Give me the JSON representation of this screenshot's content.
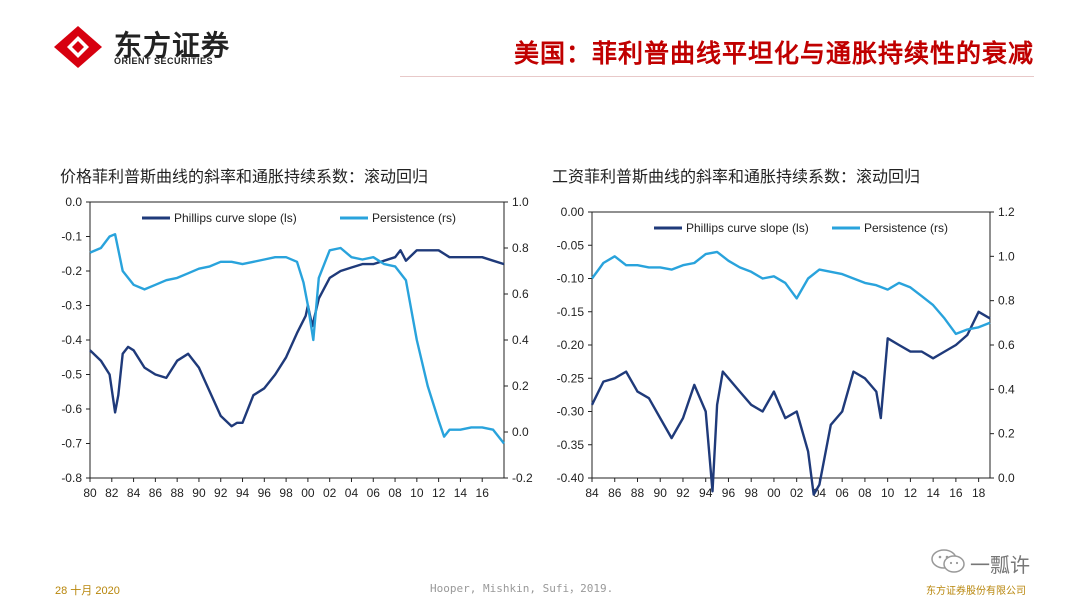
{
  "header": {
    "logo_cn": "东方证券",
    "logo_en": "ORIENT SECURITIES",
    "title": "美国：菲利普曲线平坦化与通胀持续性的衰减"
  },
  "footer": {
    "date": "28 十月 2020",
    "source": "Hooper, Mishkin, Sufi，2019.",
    "company": "东方证券股份有限公司",
    "watermark": "一瓢许"
  },
  "colors": {
    "dark_series": "#1f3a7a",
    "light_series": "#29a3dc",
    "title_red": "#c00000",
    "axis": "#222222"
  },
  "chart_data": [
    {
      "type": "line",
      "title": "价格菲利普斯曲线的斜率和通胀持续系数：滚动回归",
      "x_tick_labels": [
        "80",
        "82",
        "84",
        "86",
        "88",
        "90",
        "92",
        "94",
        "96",
        "98",
        "00",
        "02",
        "04",
        "06",
        "08",
        "10",
        "12",
        "14",
        "16"
      ],
      "x_range": [
        1980,
        2018
      ],
      "y_left": {
        "range": [
          -0.8,
          0.0
        ],
        "ticks": [
          "0.0",
          "-0.1",
          "-0.2",
          "-0.3",
          "-0.4",
          "-0.5",
          "-0.6",
          "-0.7",
          "-0.8"
        ]
      },
      "y_right": {
        "range": [
          -0.2,
          1.0
        ],
        "ticks": [
          "1.0",
          "0.8",
          "0.6",
          "0.4",
          "0.2",
          "0.0",
          "-0.2"
        ]
      },
      "series": [
        {
          "name": "Phillips curve slope (ls)",
          "axis": "left",
          "x": [
            1980,
            1981,
            1981.8,
            1982.3,
            1982.6,
            1983,
            1983.5,
            1984,
            1985,
            1986,
            1987,
            1988,
            1989,
            1990,
            1991,
            1992,
            1993,
            1993.5,
            1994,
            1995,
            1996,
            1997,
            1998,
            1999,
            1999.8,
            2000,
            2000.4,
            2001,
            2001.5,
            2002,
            2003,
            2004,
            2005,
            2006,
            2007,
            2008,
            2008.5,
            2009,
            2010,
            2011,
            2012,
            2013,
            2014,
            2015,
            2016,
            2017,
            2018
          ],
          "values": [
            -0.43,
            -0.46,
            -0.5,
            -0.61,
            -0.56,
            -0.44,
            -0.42,
            -0.43,
            -0.48,
            -0.5,
            -0.51,
            -0.46,
            -0.44,
            -0.48,
            -0.55,
            -0.62,
            -0.65,
            -0.64,
            -0.64,
            -0.56,
            -0.54,
            -0.5,
            -0.45,
            -0.38,
            -0.33,
            -0.3,
            -0.36,
            -0.28,
            -0.25,
            -0.22,
            -0.2,
            -0.19,
            -0.18,
            -0.18,
            -0.17,
            -0.16,
            -0.14,
            -0.17,
            -0.14,
            -0.14,
            -0.14,
            -0.16,
            -0.16,
            -0.16,
            -0.16,
            -0.17,
            -0.18
          ]
        },
        {
          "name": "Persistence (rs)",
          "axis": "right",
          "x": [
            1980,
            1981,
            1981.8,
            1982.3,
            1983,
            1984,
            1985,
            1986,
            1987,
            1988,
            1989,
            1990,
            1991,
            1992,
            1993,
            1994,
            1995,
            1996,
            1997,
            1998,
            1999,
            1999.6,
            2000,
            2000.5,
            2001,
            2002,
            2003,
            2004,
            2005,
            2006,
            2007,
            2008,
            2009,
            2010,
            2011,
            2012,
            2012.5,
            2013,
            2014,
            2015,
            2016,
            2017,
            2018
          ],
          "values": [
            0.78,
            0.8,
            0.85,
            0.86,
            0.7,
            0.64,
            0.62,
            0.64,
            0.66,
            0.67,
            0.69,
            0.71,
            0.72,
            0.74,
            0.74,
            0.73,
            0.74,
            0.75,
            0.76,
            0.76,
            0.74,
            0.65,
            0.55,
            0.4,
            0.67,
            0.79,
            0.8,
            0.76,
            0.75,
            0.76,
            0.73,
            0.72,
            0.66,
            0.4,
            0.2,
            0.05,
            -0.02,
            0.01,
            0.01,
            0.02,
            0.02,
            0.01,
            -0.05
          ]
        }
      ]
    },
    {
      "type": "line",
      "title": "工资菲利普斯曲线的斜率和通胀持续系数：滚动回归",
      "x_tick_labels": [
        "84",
        "86",
        "88",
        "90",
        "92",
        "94",
        "96",
        "98",
        "00",
        "02",
        "04",
        "06",
        "08",
        "10",
        "12",
        "14",
        "16",
        "18"
      ],
      "x_range": [
        1984,
        2019
      ],
      "y_left": {
        "range": [
          -0.4,
          0.0
        ],
        "ticks": [
          "0.00",
          "-0.05",
          "-0.10",
          "-0.15",
          "-0.20",
          "-0.25",
          "-0.30",
          "-0.35",
          "-0.40"
        ]
      },
      "y_right": {
        "range": [
          0.0,
          1.2
        ],
        "ticks": [
          "1.2",
          "1.0",
          "0.8",
          "0.6",
          "0.4",
          "0.2",
          "0.0"
        ]
      },
      "series": [
        {
          "name": "Phillips curve slope (ls)",
          "axis": "left",
          "x": [
            1984,
            1985,
            1986,
            1987,
            1988,
            1989,
            1990,
            1991,
            1992,
            1993,
            1994,
            1994.6,
            1995,
            1995.5,
            1996,
            1997,
            1998,
            1999,
            2000,
            2001,
            2002,
            2003,
            2003.5,
            2004,
            2005,
            2006,
            2007,
            2008,
            2009,
            2009.4,
            2010,
            2011,
            2012,
            2013,
            2014,
            2015,
            2016,
            2017,
            2018,
            2019
          ],
          "values": [
            -0.29,
            -0.255,
            -0.25,
            -0.24,
            -0.27,
            -0.28,
            -0.31,
            -0.34,
            -0.31,
            -0.26,
            -0.3,
            -0.42,
            -0.29,
            -0.24,
            -0.25,
            -0.27,
            -0.29,
            -0.3,
            -0.27,
            -0.31,
            -0.3,
            -0.36,
            -0.425,
            -0.41,
            -0.32,
            -0.3,
            -0.24,
            -0.25,
            -0.27,
            -0.31,
            -0.19,
            -0.2,
            -0.21,
            -0.21,
            -0.22,
            -0.21,
            -0.2,
            -0.185,
            -0.15,
            -0.16
          ]
        },
        {
          "name": "Persistence (rs)",
          "axis": "right",
          "x": [
            1984,
            1985,
            1986,
            1987,
            1988,
            1989,
            1990,
            1991,
            1992,
            1993,
            1994,
            1995,
            1996,
            1997,
            1998,
            1999,
            2000,
            2001,
            2002,
            2003,
            2004,
            2005,
            2006,
            2007,
            2008,
            2009,
            2010,
            2011,
            2012,
            2013,
            2014,
            2015,
            2016,
            2017,
            2018,
            2019
          ],
          "values": [
            0.9,
            0.97,
            1.0,
            0.96,
            0.96,
            0.95,
            0.95,
            0.94,
            0.96,
            0.97,
            1.01,
            1.02,
            0.98,
            0.95,
            0.93,
            0.9,
            0.91,
            0.88,
            0.81,
            0.9,
            0.94,
            0.93,
            0.92,
            0.9,
            0.88,
            0.87,
            0.85,
            0.88,
            0.86,
            0.82,
            0.78,
            0.72,
            0.65,
            0.67,
            0.68,
            0.7
          ]
        }
      ]
    }
  ]
}
